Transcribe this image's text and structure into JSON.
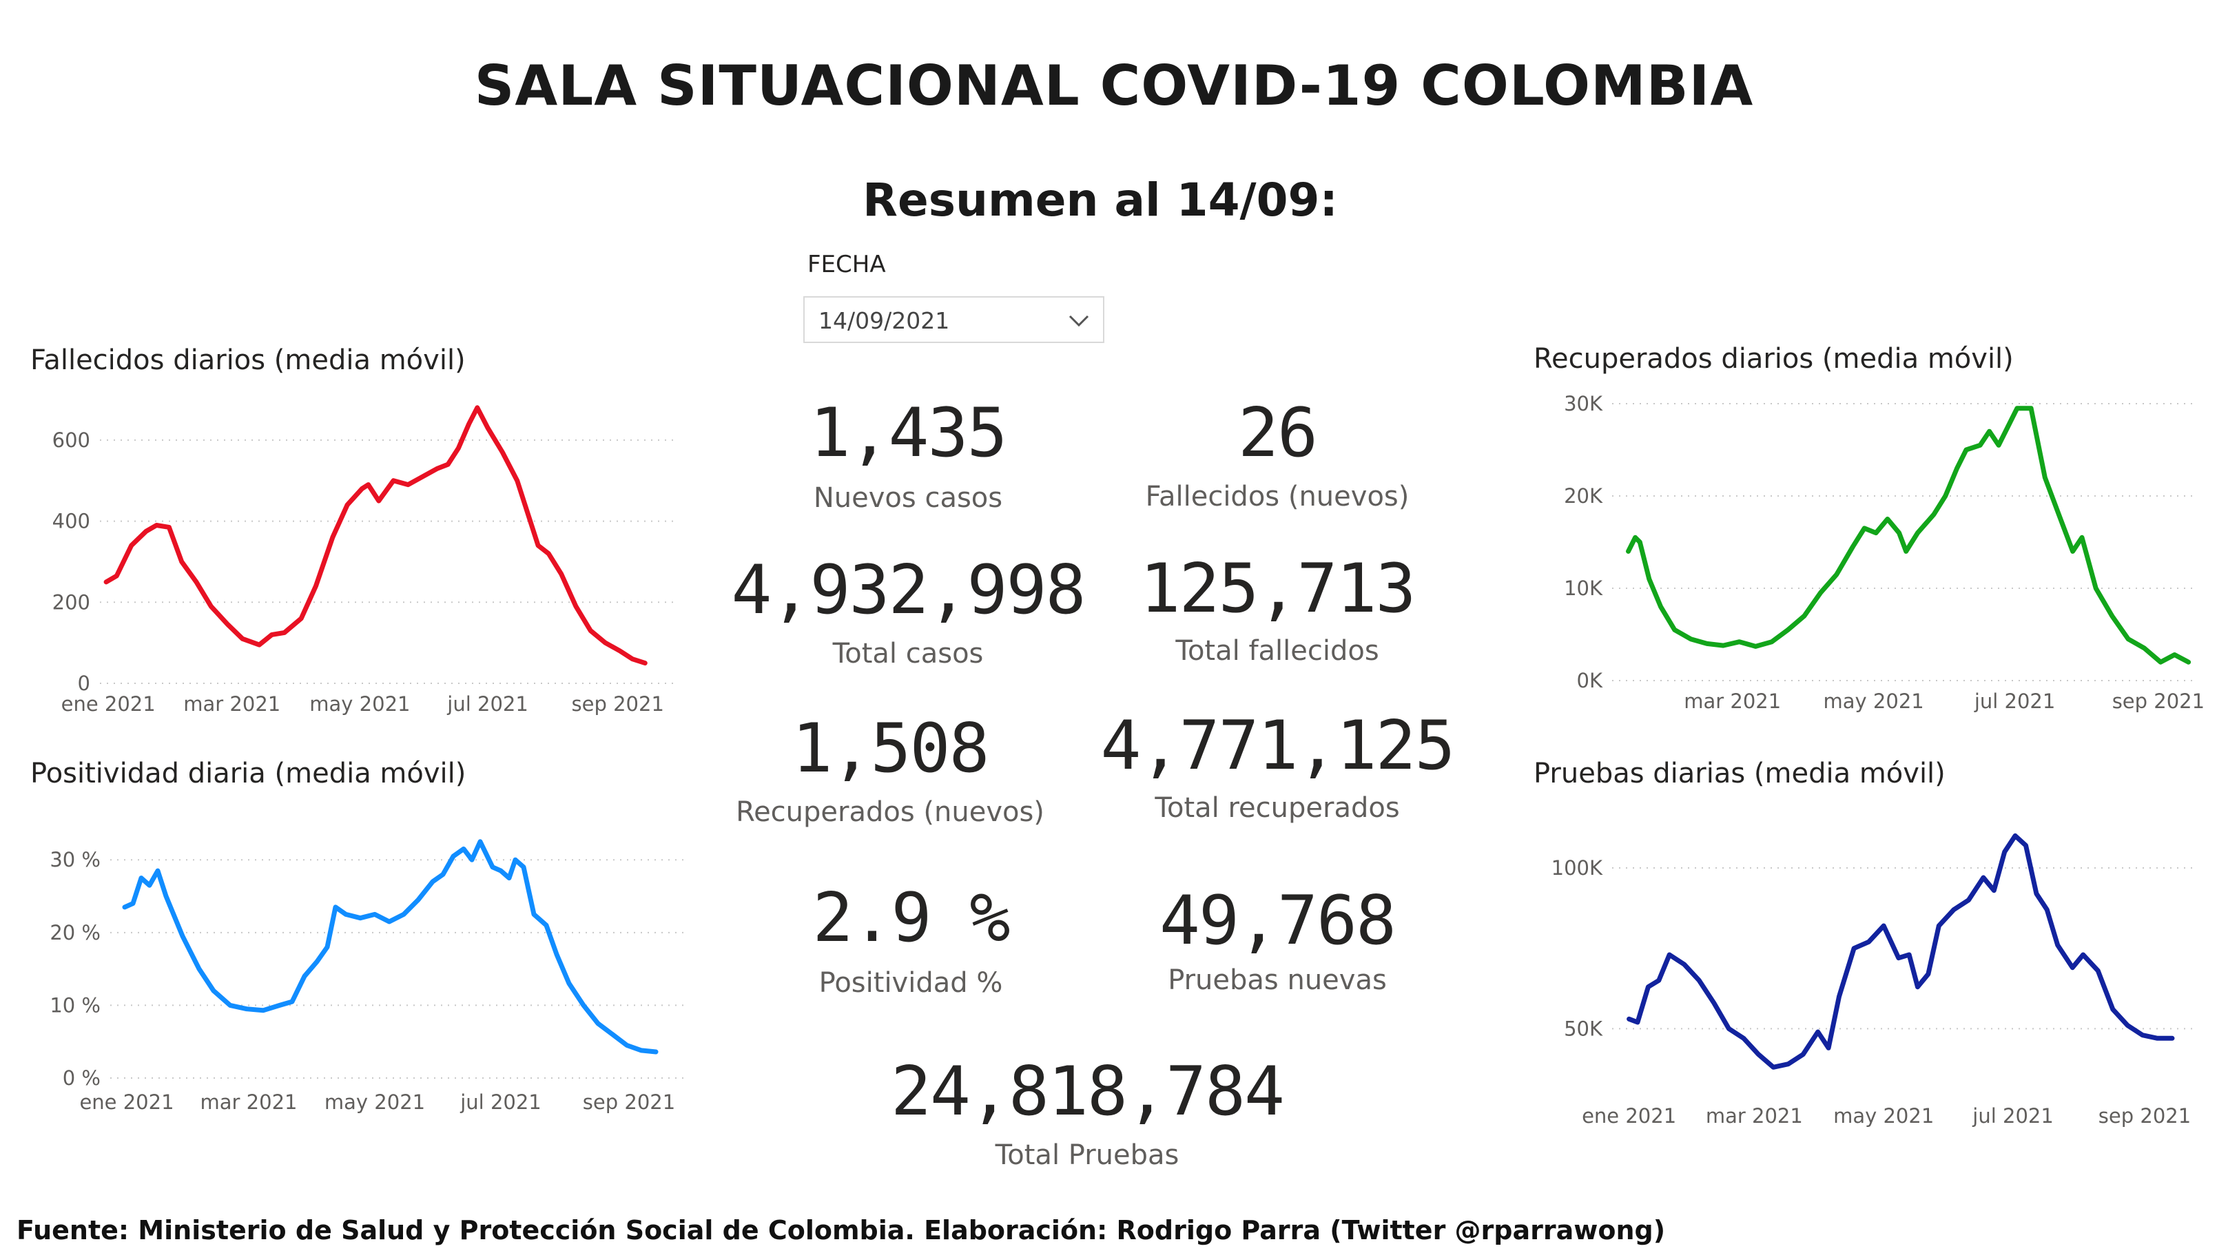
{
  "header": {
    "title": "SALA SITUACIONAL COVID-19 COLOMBIA",
    "subtitle": "Resumen al 14/09:"
  },
  "filter": {
    "label": "FECHA",
    "value": "14/09/2021",
    "icon": "chevron-down-icon"
  },
  "kpis": {
    "nuevos_casos": {
      "value": "1,435",
      "label": "Nuevos casos"
    },
    "fallecidos_nuevos": {
      "value": "26",
      "label": "Fallecidos (nuevos)"
    },
    "total_casos": {
      "value": "4,932,998",
      "label": "Total casos"
    },
    "total_fallecidos": {
      "value": "125,713",
      "label": "Total fallecidos"
    },
    "recuperados_nuevos": {
      "value": "1,508",
      "label": "Recuperados (nuevos)"
    },
    "total_recuperados": {
      "value": "4,771,125",
      "label": "Total recuperados"
    },
    "positividad": {
      "value": "2.9 %",
      "label": "Positividad %"
    },
    "pruebas_nuevas": {
      "value": "49,768",
      "label": "Pruebas nuevas"
    },
    "total_pruebas": {
      "value": "24,818,784",
      "label": "Total Pruebas"
    }
  },
  "footer": {
    "source": "Fuente: Ministerio de Salud y Protección Social de Colombia. Elaboración: Rodrigo Parra (Twitter @rparrawong)"
  },
  "chart_data": [
    {
      "id": "fallecidos",
      "type": "line",
      "title": "Fallecidos diarios (media móvil)",
      "color": "#e81123",
      "x_ticks": [
        "ene 2021",
        "mar 2021",
        "may 2021",
        "jul 2021",
        "sep 2021"
      ],
      "x_tick_dates": [
        "2021-01-01",
        "2021-03-01",
        "2021-05-01",
        "2021-07-01",
        "2021-09-01"
      ],
      "y_ticks": [
        0,
        200,
        400,
        600
      ],
      "y_tick_labels": [
        "0",
        "200",
        "400",
        "600"
      ],
      "ylim": [
        0,
        700
      ],
      "xlim": [
        "2020-12-28",
        "2021-09-30"
      ],
      "grid": true,
      "series": [
        {
          "values": [
            [
              "2020-12-31",
              250
            ],
            [
              "2021-01-05",
              265
            ],
            [
              "2021-01-12",
              340
            ],
            [
              "2021-01-19",
              375
            ],
            [
              "2021-01-24",
              390
            ],
            [
              "2021-01-30",
              385
            ],
            [
              "2021-02-05",
              300
            ],
            [
              "2021-02-12",
              250
            ],
            [
              "2021-02-19",
              190
            ],
            [
              "2021-02-27",
              145
            ],
            [
              "2021-03-06",
              110
            ],
            [
              "2021-03-14",
              95
            ],
            [
              "2021-03-20",
              120
            ],
            [
              "2021-03-26",
              125
            ],
            [
              "2021-04-03",
              160
            ],
            [
              "2021-04-10",
              240
            ],
            [
              "2021-04-18",
              360
            ],
            [
              "2021-04-25",
              440
            ],
            [
              "2021-05-02",
              480
            ],
            [
              "2021-05-05",
              490
            ],
            [
              "2021-05-10",
              450
            ],
            [
              "2021-05-17",
              500
            ],
            [
              "2021-05-24",
              490
            ],
            [
              "2021-05-31",
              510
            ],
            [
              "2021-06-07",
              530
            ],
            [
              "2021-06-12",
              540
            ],
            [
              "2021-06-17",
              580
            ],
            [
              "2021-06-22",
              640
            ],
            [
              "2021-06-26",
              680
            ],
            [
              "2021-07-01",
              630
            ],
            [
              "2021-07-08",
              570
            ],
            [
              "2021-07-15",
              500
            ],
            [
              "2021-07-20",
              420
            ],
            [
              "2021-07-25",
              340
            ],
            [
              "2021-07-30",
              320
            ],
            [
              "2021-08-05",
              270
            ],
            [
              "2021-08-12",
              190
            ],
            [
              "2021-08-19",
              130
            ],
            [
              "2021-08-26",
              100
            ],
            [
              "2021-09-02",
              80
            ],
            [
              "2021-09-08",
              60
            ],
            [
              "2021-09-14",
              50
            ]
          ]
        }
      ]
    },
    {
      "id": "positividad",
      "type": "line",
      "title": "Positividad diaria (media móvil)",
      "color": "#118dff",
      "x_ticks": [
        "ene 2021",
        "mar 2021",
        "may 2021",
        "jul 2021",
        "sep 2021"
      ],
      "x_tick_dates": [
        "2021-01-01",
        "2021-03-01",
        "2021-05-01",
        "2021-07-01",
        "2021-09-01"
      ],
      "y_ticks": [
        0,
        10,
        20,
        30
      ],
      "y_tick_labels": [
        "0 %",
        "10 %",
        "20 %",
        "30 %"
      ],
      "ylim": [
        0,
        34
      ],
      "xlim": [
        "2020-12-24",
        "2021-09-30"
      ],
      "grid": true,
      "series": [
        {
          "values": [
            [
              "2020-12-31",
              23.5
            ],
            [
              "2021-01-04",
              24
            ],
            [
              "2021-01-08",
              27.5
            ],
            [
              "2021-01-12",
              26.5
            ],
            [
              "2021-01-16",
              28.5
            ],
            [
              "2021-01-20",
              25
            ],
            [
              "2021-01-28",
              19.5
            ],
            [
              "2021-02-05",
              15
            ],
            [
              "2021-02-12",
              12
            ],
            [
              "2021-02-20",
              10
            ],
            [
              "2021-02-28",
              9.5
            ],
            [
              "2021-03-08",
              9.3
            ],
            [
              "2021-03-16",
              10
            ],
            [
              "2021-03-22",
              10.5
            ],
            [
              "2021-03-28",
              14
            ],
            [
              "2021-04-03",
              16
            ],
            [
              "2021-04-08",
              18
            ],
            [
              "2021-04-12",
              23.5
            ],
            [
              "2021-04-17",
              22.5
            ],
            [
              "2021-04-24",
              22
            ],
            [
              "2021-05-01",
              22.5
            ],
            [
              "2021-05-08",
              21.5
            ],
            [
              "2021-05-15",
              22.5
            ],
            [
              "2021-05-22",
              24.5
            ],
            [
              "2021-05-29",
              27
            ],
            [
              "2021-06-03",
              28
            ],
            [
              "2021-06-08",
              30.5
            ],
            [
              "2021-06-13",
              31.5
            ],
            [
              "2021-06-17",
              30
            ],
            [
              "2021-06-21",
              32.5
            ],
            [
              "2021-06-27",
              29
            ],
            [
              "2021-07-01",
              28.5
            ],
            [
              "2021-07-05",
              27.5
            ],
            [
              "2021-07-08",
              30
            ],
            [
              "2021-07-12",
              29
            ],
            [
              "2021-07-17",
              22.5
            ],
            [
              "2021-07-23",
              21
            ],
            [
              "2021-07-28",
              17
            ],
            [
              "2021-08-03",
              13
            ],
            [
              "2021-08-10",
              10
            ],
            [
              "2021-08-17",
              7.5
            ],
            [
              "2021-08-24",
              6
            ],
            [
              "2021-08-31",
              4.5
            ],
            [
              "2021-09-07",
              3.8
            ],
            [
              "2021-09-14",
              3.6
            ]
          ]
        }
      ]
    },
    {
      "id": "recuperados",
      "type": "line",
      "title": "Recuperados diarios (media móvil)",
      "color": "#12a51a",
      "x_ticks": [
        "mar 2021",
        "may 2021",
        "jul 2021",
        "sep 2021"
      ],
      "x_tick_dates": [
        "2021-03-01",
        "2021-05-01",
        "2021-07-01",
        "2021-09-01"
      ],
      "y_ticks": [
        0,
        10000,
        20000,
        30000
      ],
      "y_tick_labels": [
        "0K",
        "10K",
        "20K",
        "30K"
      ],
      "ylim": [
        0,
        30000
      ],
      "xlim": [
        "2021-01-08",
        "2021-09-18"
      ],
      "grid": true,
      "series": [
        {
          "values": [
            [
              "2021-01-15",
              14000
            ],
            [
              "2021-01-18",
              15500
            ],
            [
              "2021-01-20",
              15000
            ],
            [
              "2021-01-24",
              11000
            ],
            [
              "2021-01-29",
              8000
            ],
            [
              "2021-02-04",
              5500
            ],
            [
              "2021-02-11",
              4500
            ],
            [
              "2021-02-18",
              4000
            ],
            [
              "2021-02-25",
              3800
            ],
            [
              "2021-03-04",
              4200
            ],
            [
              "2021-03-11",
              3700
            ],
            [
              "2021-03-18",
              4200
            ],
            [
              "2021-03-25",
              5500
            ],
            [
              "2021-04-01",
              7000
            ],
            [
              "2021-04-08",
              9500
            ],
            [
              "2021-04-15",
              11500
            ],
            [
              "2021-04-22",
              14500
            ],
            [
              "2021-04-27",
              16500
            ],
            [
              "2021-05-02",
              16000
            ],
            [
              "2021-05-07",
              17500
            ],
            [
              "2021-05-12",
              16000
            ],
            [
              "2021-05-15",
              14000
            ],
            [
              "2021-05-20",
              16000
            ],
            [
              "2021-05-27",
              18000
            ],
            [
              "2021-06-01",
              20000
            ],
            [
              "2021-06-06",
              23000
            ],
            [
              "2021-06-10",
              25000
            ],
            [
              "2021-06-16",
              25500
            ],
            [
              "2021-06-20",
              27000
            ],
            [
              "2021-06-24",
              25500
            ],
            [
              "2021-06-28",
              27500
            ],
            [
              "2021-07-02",
              29500
            ],
            [
              "2021-07-08",
              29500
            ],
            [
              "2021-07-14",
              22000
            ],
            [
              "2021-07-20",
              18000
            ],
            [
              "2021-07-26",
              14000
            ],
            [
              "2021-07-30",
              15500
            ],
            [
              "2021-08-05",
              10000
            ],
            [
              "2021-08-12",
              7000
            ],
            [
              "2021-08-19",
              4500
            ],
            [
              "2021-08-26",
              3500
            ],
            [
              "2021-09-02",
              2000
            ],
            [
              "2021-09-08",
              2800
            ],
            [
              "2021-09-14",
              2000
            ]
          ]
        }
      ]
    },
    {
      "id": "pruebas",
      "type": "line",
      "title": "Pruebas diarias (media móvil)",
      "color": "#12239e",
      "x_ticks": [
        "ene 2021",
        "mar 2021",
        "may 2021",
        "jul 2021",
        "sep 2021"
      ],
      "x_tick_dates": [
        "2021-01-01",
        "2021-03-01",
        "2021-05-01",
        "2021-07-01",
        "2021-09-01"
      ],
      "y_ticks": [
        50000,
        100000
      ],
      "y_tick_labels": [
        "50K",
        "100K"
      ],
      "ylim": [
        25000,
        115000
      ],
      "xlim": [
        "2020-12-24",
        "2021-09-26"
      ],
      "grid": true,
      "series": [
        {
          "values": [
            [
              "2021-01-01",
              53000
            ],
            [
              "2021-01-05",
              52000
            ],
            [
              "2021-01-10",
              63000
            ],
            [
              "2021-01-15",
              65000
            ],
            [
              "2021-01-20",
              73000
            ],
            [
              "2021-01-27",
              70000
            ],
            [
              "2021-02-03",
              65000
            ],
            [
              "2021-02-10",
              58000
            ],
            [
              "2021-02-17",
              50000
            ],
            [
              "2021-02-24",
              47000
            ],
            [
              "2021-03-03",
              42000
            ],
            [
              "2021-03-10",
              38000
            ],
            [
              "2021-03-17",
              39000
            ],
            [
              "2021-03-24",
              42000
            ],
            [
              "2021-03-31",
              49000
            ],
            [
              "2021-04-05",
              44000
            ],
            [
              "2021-04-10",
              60000
            ],
            [
              "2021-04-17",
              75000
            ],
            [
              "2021-04-24",
              77000
            ],
            [
              "2021-05-01",
              82000
            ],
            [
              "2021-05-08",
              72000
            ],
            [
              "2021-05-13",
              73000
            ],
            [
              "2021-05-17",
              63000
            ],
            [
              "2021-05-22",
              67000
            ],
            [
              "2021-05-27",
              82000
            ],
            [
              "2021-06-03",
              87000
            ],
            [
              "2021-06-10",
              90000
            ],
            [
              "2021-06-17",
              97000
            ],
            [
              "2021-06-22",
              93000
            ],
            [
              "2021-06-27",
              105000
            ],
            [
              "2021-07-02",
              110000
            ],
            [
              "2021-07-07",
              107000
            ],
            [
              "2021-07-12",
              92000
            ],
            [
              "2021-07-17",
              87000
            ],
            [
              "2021-07-22",
              76000
            ],
            [
              "2021-07-29",
              69000
            ],
            [
              "2021-08-03",
              73000
            ],
            [
              "2021-08-10",
              68000
            ],
            [
              "2021-08-17",
              56000
            ],
            [
              "2021-08-24",
              51000
            ],
            [
              "2021-08-31",
              48000
            ],
            [
              "2021-09-07",
              47000
            ],
            [
              "2021-09-14",
              47000
            ]
          ]
        }
      ]
    }
  ]
}
